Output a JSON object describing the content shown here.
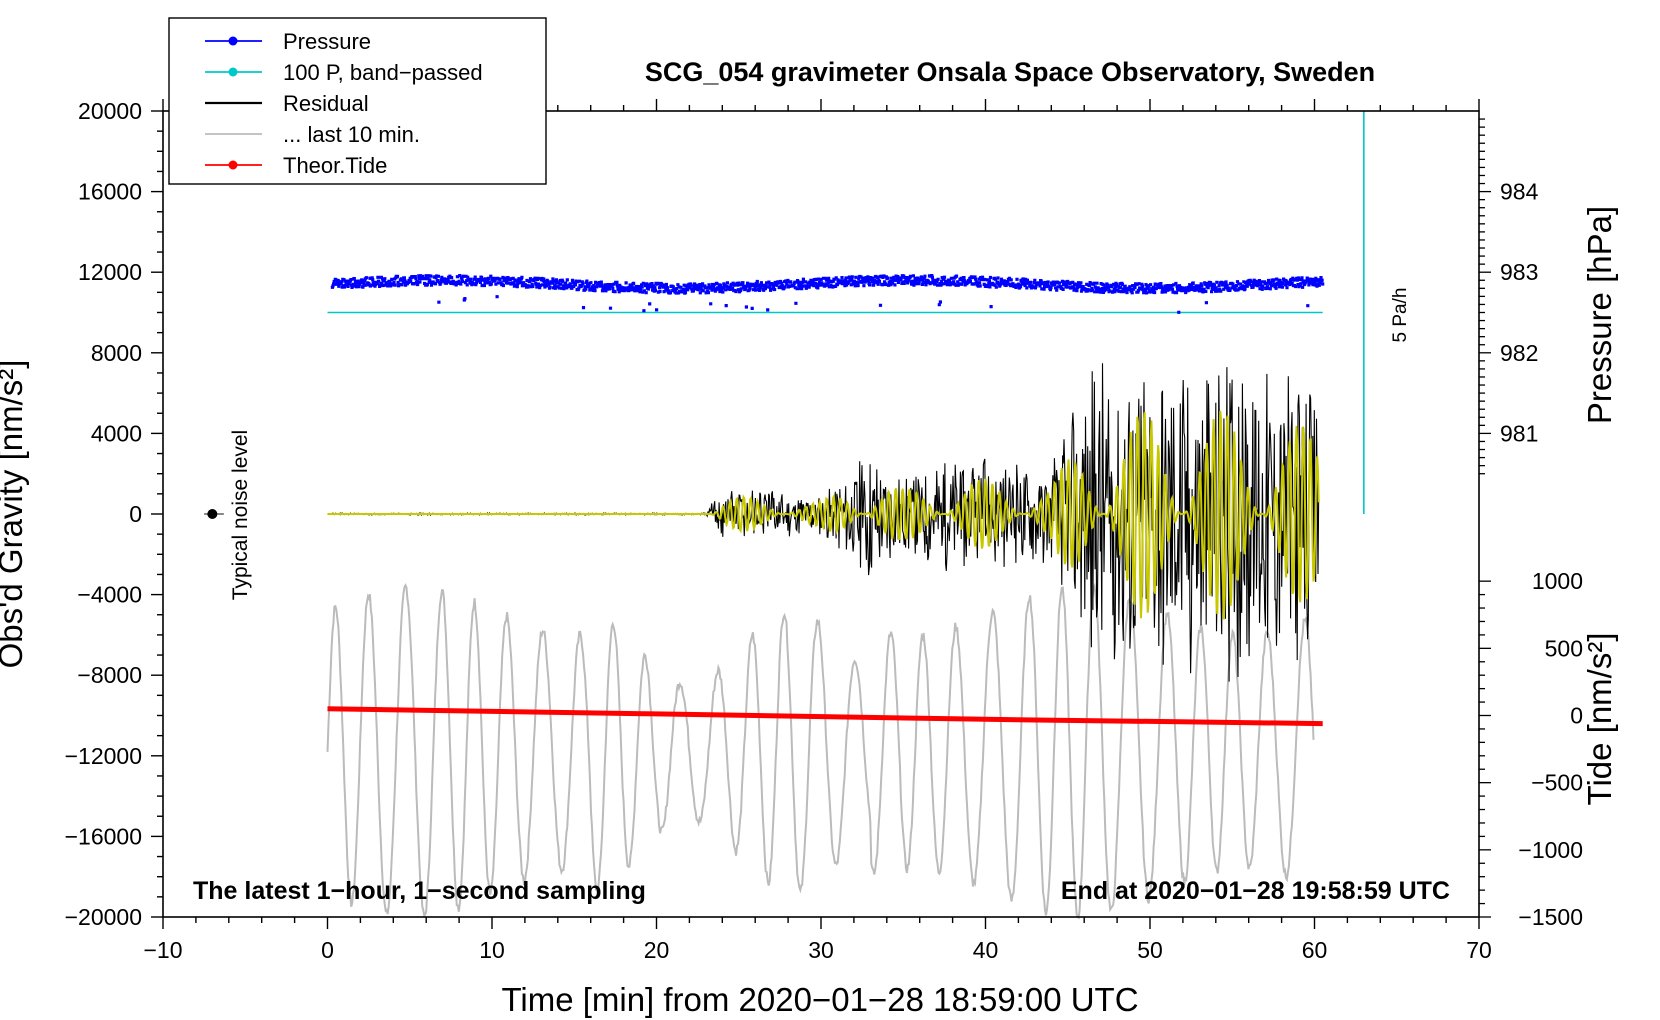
{
  "chart_data": {
    "type": "line",
    "title": "SCG_054 gravimeter Onsala Space Observatory, Sweden",
    "xlabel": "Time [min] from 2020−01−28 18:59:00 UTC",
    "ylabel_left": "Obs'd Gravity [nm/s²]",
    "ylabel_right_top": "Pressure [hPa]",
    "ylabel_right_bottom": "Tide [nm/s²]",
    "xlim": [
      -10,
      70
    ],
    "ylim_left": [
      -20000,
      20000
    ],
    "x_ticks": [
      "−10",
      "0",
      "10",
      "20",
      "30",
      "40",
      "50",
      "60",
      "70"
    ],
    "x_tick_values": [
      -10,
      0,
      10,
      20,
      30,
      40,
      50,
      60,
      70
    ],
    "y_left_ticks": [
      "20000",
      "16000",
      "12000",
      "8000",
      "4000",
      "0",
      "−4000",
      "−8000",
      "−12000",
      "−16000",
      "−20000"
    ],
    "y_left_tick_values": [
      20000,
      16000,
      12000,
      8000,
      4000,
      0,
      -4000,
      -8000,
      -12000,
      -16000,
      -20000
    ],
    "pressure_axis": {
      "ticks": [
        "984",
        "983",
        "982",
        "981"
      ],
      "tick_values": [
        984,
        983,
        982,
        981
      ],
      "mapping_note": "984 hPa at 16000, 1 hPa = 4000 on left axis"
    },
    "tide_axis": {
      "ticks": [
        "1000",
        "500",
        "0",
        "−500",
        "−1000",
        "−1500"
      ],
      "tick_values": [
        1000,
        500,
        0,
        -500,
        -1000,
        -1500
      ],
      "mapping_note": "0 at -10000, 1 nm/s2 = 6.67 on left axis"
    },
    "annotations": {
      "bottom_left": "The latest 1−hour, 1−second sampling",
      "bottom_right": "End at 2020−01−28 19:58:59 UTC",
      "noise_label": "Typical noise level",
      "scale_label": "5 Pa/h"
    },
    "legend": {
      "position": "top-left",
      "entries": [
        {
          "name": "Pressure",
          "color": "#0000ff",
          "marker": true
        },
        {
          "name": "100 P, band−passed",
          "color": "#00c8c8",
          "marker": true
        },
        {
          "name": "Residual",
          "color": "#000000",
          "marker": false
        },
        {
          "name": "... last 10 min.",
          "color": "#bbbbbb",
          "marker": false
        },
        {
          "name": "Theor.Tide",
          "color": "#ff0000",
          "marker": true
        }
      ]
    },
    "series": [
      {
        "name": "Pressure",
        "unit": "hPa",
        "x_range": [
          0,
          60.5
        ],
        "approx_value": 982.85,
        "note": "scattered points 982.75-982.95"
      },
      {
        "name": "100 P, band-passed",
        "x_range": [
          0,
          60.5
        ],
        "approx_left_value": 10000
      },
      {
        "name": "Residual",
        "x": [
          0,
          23,
          24,
          30,
          33,
          35,
          38,
          44,
          47,
          48,
          50,
          55,
          60
        ],
        "amplitude": [
          50,
          50,
          1500,
          1000,
          3500,
          2000,
          3000,
          2500,
          8500,
          8000,
          8500,
          8500,
          7000
        ]
      },
      {
        "name": "last 10 min",
        "x_range": [
          0,
          60
        ],
        "note": "delayed/rescaled oscillation, range -20000 to -3500"
      },
      {
        "name": "Theor.Tide",
        "unit": "nm/s2",
        "x": [
          0,
          20,
          40,
          60.5
        ],
        "values": [
          50,
          12,
          -28,
          -60
        ]
      }
    ],
    "colors": {
      "pressure": "#0000ff",
      "bandpassed": "#00c8c8",
      "residual": "#000000",
      "filtered": "#c8c800",
      "last10": "#bbbbbb",
      "tide": "#ff0000"
    }
  }
}
